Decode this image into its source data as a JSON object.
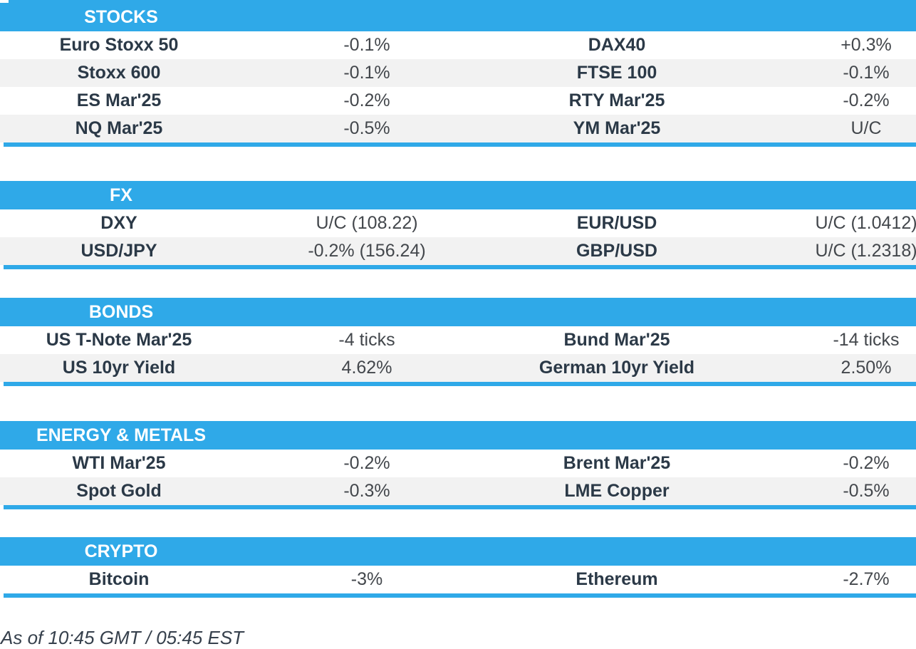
{
  "colors": {
    "accent_blue": "#2FA9E8",
    "row_alt_gray": "#F2F2F2",
    "label_text": "#2B3947",
    "value_text": "#43474C",
    "header_text": "#FFFFFF"
  },
  "sections": [
    {
      "title": "STOCKS",
      "rows": [
        {
          "l1": "Euro Stoxx 50",
          "v1": "-0.1%",
          "l2": "DAX40",
          "v2": "+0.3%"
        },
        {
          "l1": "Stoxx 600",
          "v1": "-0.1%",
          "l2": "FTSE 100",
          "v2": "-0.1%"
        },
        {
          "l1": "ES Mar'25",
          "v1": "-0.2%",
          "l2": "RTY Mar'25",
          "v2": "-0.2%"
        },
        {
          "l1": "NQ Mar'25",
          "v1": "-0.5%",
          "l2": "YM Mar'25",
          "v2": "U/C"
        }
      ]
    },
    {
      "title": "FX",
      "rows": [
        {
          "l1": "DXY",
          "v1": "U/C (108.22)",
          "l2": "EUR/USD",
          "v2": "U/C (1.0412)"
        },
        {
          "l1": "USD/JPY",
          "v1": "-0.2% (156.24)",
          "l2": "GBP/USD",
          "v2": "U/C (1.2318)"
        }
      ]
    },
    {
      "title": "BONDS",
      "rows": [
        {
          "l1": "US T-Note Mar'25",
          "v1": "-4 ticks",
          "l2": "Bund Mar'25",
          "v2": "-14 ticks"
        },
        {
          "l1": "US 10yr Yield",
          "v1": "4.62%",
          "l2": "German 10yr Yield",
          "v2": "2.50%"
        }
      ]
    },
    {
      "title": "ENERGY & METALS",
      "rows": [
        {
          "l1": "WTI Mar'25",
          "v1": "-0.2%",
          "l2": "Brent Mar'25",
          "v2": "-0.2%"
        },
        {
          "l1": "Spot Gold",
          "v1": "-0.3%",
          "l2": "LME Copper",
          "v2": "-0.5%"
        }
      ]
    },
    {
      "title": "CRYPTO",
      "rows": [
        {
          "l1": "Bitcoin",
          "v1": "-3%",
          "l2": "Ethereum",
          "v2": "-2.7%"
        }
      ]
    }
  ],
  "footer": {
    "as_of": "As of 10:45 GMT / 05:45 EST"
  }
}
